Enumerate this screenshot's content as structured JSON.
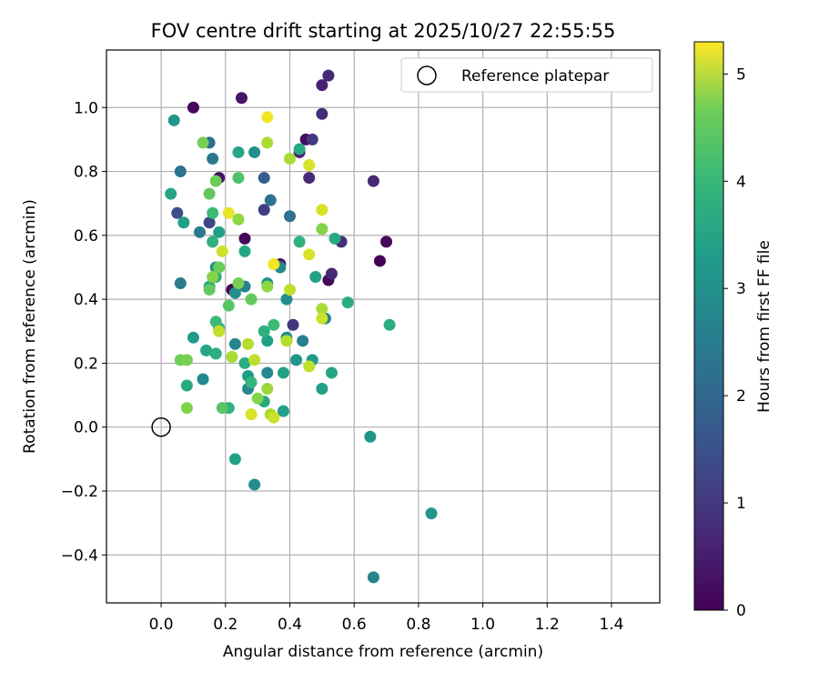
{
  "chart_data": {
    "type": "scatter",
    "title": "FOV centre drift starting at 2025/10/27 22:55:55",
    "xlabel": "Angular distance from reference (arcmin)",
    "ylabel": "Rotation from reference (arcmin)",
    "xlim": [
      -0.17,
      1.55
    ],
    "ylim": [
      -0.55,
      1.18
    ],
    "xticks": [
      0.0,
      0.2,
      0.4,
      0.6,
      0.8,
      1.0,
      1.2,
      1.4
    ],
    "xtick_labels": [
      "0.0",
      "0.2",
      "0.4",
      "0.6",
      "0.8",
      "1.0",
      "1.2",
      "1.4"
    ],
    "yticks": [
      -0.4,
      -0.2,
      0.0,
      0.2,
      0.4,
      0.6,
      0.8,
      1.0
    ],
    "ytick_labels": [
      "−0.4",
      "−0.2",
      "0.0",
      "0.2",
      "0.4",
      "0.6",
      "0.8",
      "1.0"
    ],
    "grid": true,
    "legend": {
      "placement": "top-right",
      "entries": [
        "Reference platepar"
      ]
    },
    "reference_point": {
      "x": 0.0,
      "y": 0.0
    },
    "colorbar": {
      "label": "Hours from first FF file",
      "range": [
        0,
        5.3
      ],
      "ticks": [
        0,
        1,
        2,
        3,
        4,
        5
      ],
      "tick_labels": [
        "0",
        "1",
        "2",
        "3",
        "4",
        "5"
      ],
      "colormap": "viridis"
    },
    "points": [
      {
        "x": 0.1,
        "y": 1.0,
        "c": 0.1
      },
      {
        "x": 0.25,
        "y": 1.03,
        "c": 0.3
      },
      {
        "x": 0.52,
        "y": 1.1,
        "c": 0.6
      },
      {
        "x": 0.5,
        "y": 1.07,
        "c": 0.5
      },
      {
        "x": 0.5,
        "y": 0.98,
        "c": 0.7
      },
      {
        "x": 0.45,
        "y": 0.9,
        "c": 0.2
      },
      {
        "x": 0.47,
        "y": 0.9,
        "c": 0.9
      },
      {
        "x": 0.43,
        "y": 0.86,
        "c": 0.5
      },
      {
        "x": 0.46,
        "y": 0.78,
        "c": 0.6
      },
      {
        "x": 0.66,
        "y": 0.77,
        "c": 0.6
      },
      {
        "x": 0.7,
        "y": 0.58,
        "c": 0.1
      },
      {
        "x": 0.68,
        "y": 0.52,
        "c": 0.0
      },
      {
        "x": 0.56,
        "y": 0.58,
        "c": 0.7
      },
      {
        "x": 0.52,
        "y": 0.46,
        "c": 0.1
      },
      {
        "x": 0.53,
        "y": 0.48,
        "c": 0.6
      },
      {
        "x": 0.26,
        "y": 0.59,
        "c": 0.1
      },
      {
        "x": 0.22,
        "y": 0.43,
        "c": 0.1
      },
      {
        "x": 0.18,
        "y": 0.78,
        "c": 0.2
      },
      {
        "x": 0.37,
        "y": 0.51,
        "c": 0.3
      },
      {
        "x": 0.41,
        "y": 0.32,
        "c": 0.8
      },
      {
        "x": 0.32,
        "y": 0.68,
        "c": 1.0
      },
      {
        "x": 0.15,
        "y": 0.64,
        "c": 1.1
      },
      {
        "x": 0.05,
        "y": 0.67,
        "c": 1.3
      },
      {
        "x": 0.32,
        "y": 0.78,
        "c": 1.6
      },
      {
        "x": 0.15,
        "y": 0.89,
        "c": 1.9
      },
      {
        "x": 0.16,
        "y": 0.84,
        "c": 2.1
      },
      {
        "x": 0.06,
        "y": 0.8,
        "c": 2.0
      },
      {
        "x": 0.34,
        "y": 0.71,
        "c": 2.0
      },
      {
        "x": 0.4,
        "y": 0.66,
        "c": 2.0
      },
      {
        "x": 0.12,
        "y": 0.61,
        "c": 2.2
      },
      {
        "x": 0.06,
        "y": 0.45,
        "c": 2.2
      },
      {
        "x": 0.29,
        "y": 0.86,
        "c": 2.6
      },
      {
        "x": 0.24,
        "y": 0.86,
        "c": 3.1
      },
      {
        "x": 0.04,
        "y": 0.96,
        "c": 2.8
      },
      {
        "x": 0.03,
        "y": 0.73,
        "c": 3.1
      },
      {
        "x": 0.07,
        "y": 0.64,
        "c": 3.0
      },
      {
        "x": 0.18,
        "y": 0.61,
        "c": 3.0
      },
      {
        "x": 0.16,
        "y": 0.58,
        "c": 3.4
      },
      {
        "x": 0.17,
        "y": 0.5,
        "c": 2.7
      },
      {
        "x": 0.17,
        "y": 0.47,
        "c": 3.3
      },
      {
        "x": 0.15,
        "y": 0.44,
        "c": 3.2
      },
      {
        "x": 0.23,
        "y": 0.42,
        "c": 2.6
      },
      {
        "x": 0.26,
        "y": 0.44,
        "c": 2.3
      },
      {
        "x": 0.26,
        "y": 0.55,
        "c": 3.1
      },
      {
        "x": 0.43,
        "y": 0.87,
        "c": 3.2
      },
      {
        "x": 0.43,
        "y": 0.58,
        "c": 3.4
      },
      {
        "x": 0.37,
        "y": 0.5,
        "c": 2.5
      },
      {
        "x": 0.33,
        "y": 0.45,
        "c": 2.7
      },
      {
        "x": 0.39,
        "y": 0.4,
        "c": 2.6
      },
      {
        "x": 0.48,
        "y": 0.47,
        "c": 3.0
      },
      {
        "x": 0.51,
        "y": 0.34,
        "c": 2.3
      },
      {
        "x": 0.54,
        "y": 0.59,
        "c": 3.2
      },
      {
        "x": 0.58,
        "y": 0.39,
        "c": 3.3
      },
      {
        "x": 0.71,
        "y": 0.32,
        "c": 3.3
      },
      {
        "x": 0.1,
        "y": 0.28,
        "c": 2.9
      },
      {
        "x": 0.14,
        "y": 0.24,
        "c": 3.1
      },
      {
        "x": 0.17,
        "y": 0.23,
        "c": 3.3
      },
      {
        "x": 0.18,
        "y": 0.31,
        "c": 3.3
      },
      {
        "x": 0.17,
        "y": 0.33,
        "c": 3.6
      },
      {
        "x": 0.23,
        "y": 0.26,
        "c": 2.4
      },
      {
        "x": 0.13,
        "y": 0.15,
        "c": 2.5
      },
      {
        "x": 0.08,
        "y": 0.13,
        "c": 3.2
      },
      {
        "x": 0.27,
        "y": 0.16,
        "c": 2.9
      },
      {
        "x": 0.27,
        "y": 0.12,
        "c": 2.5
      },
      {
        "x": 0.28,
        "y": 0.14,
        "c": 3.5
      },
      {
        "x": 0.26,
        "y": 0.2,
        "c": 3.3
      },
      {
        "x": 0.33,
        "y": 0.27,
        "c": 3.0
      },
      {
        "x": 0.32,
        "y": 0.3,
        "c": 3.4
      },
      {
        "x": 0.35,
        "y": 0.32,
        "c": 3.6
      },
      {
        "x": 0.39,
        "y": 0.28,
        "c": 2.6
      },
      {
        "x": 0.44,
        "y": 0.27,
        "c": 2.3
      },
      {
        "x": 0.33,
        "y": 0.17,
        "c": 2.5
      },
      {
        "x": 0.38,
        "y": 0.17,
        "c": 3.0
      },
      {
        "x": 0.42,
        "y": 0.21,
        "c": 2.8
      },
      {
        "x": 0.47,
        "y": 0.21,
        "c": 2.9
      },
      {
        "x": 0.53,
        "y": 0.17,
        "c": 3.1
      },
      {
        "x": 0.5,
        "y": 0.12,
        "c": 3.0
      },
      {
        "x": 0.32,
        "y": 0.08,
        "c": 3.2
      },
      {
        "x": 0.38,
        "y": 0.05,
        "c": 3.0
      },
      {
        "x": 0.21,
        "y": 0.06,
        "c": 3.4
      },
      {
        "x": 0.65,
        "y": -0.03,
        "c": 2.8
      },
      {
        "x": 0.23,
        "y": -0.1,
        "c": 3.0
      },
      {
        "x": 0.29,
        "y": -0.18,
        "c": 2.6
      },
      {
        "x": 0.84,
        "y": -0.27,
        "c": 2.8
      },
      {
        "x": 0.66,
        "y": -0.47,
        "c": 2.4
      },
      {
        "x": 0.13,
        "y": 0.89,
        "c": 4.2
      },
      {
        "x": 0.24,
        "y": 0.78,
        "c": 3.8
      },
      {
        "x": 0.15,
        "y": 0.73,
        "c": 4.0
      },
      {
        "x": 0.17,
        "y": 0.77,
        "c": 4.1
      },
      {
        "x": 0.16,
        "y": 0.67,
        "c": 3.6
      },
      {
        "x": 0.24,
        "y": 0.65,
        "c": 4.4
      },
      {
        "x": 0.21,
        "y": 0.67,
        "c": 5.1
      },
      {
        "x": 0.19,
        "y": 0.55,
        "c": 4.9
      },
      {
        "x": 0.18,
        "y": 0.5,
        "c": 4.1
      },
      {
        "x": 0.16,
        "y": 0.47,
        "c": 4.3
      },
      {
        "x": 0.15,
        "y": 0.43,
        "c": 4.0
      },
      {
        "x": 0.24,
        "y": 0.45,
        "c": 4.2
      },
      {
        "x": 0.21,
        "y": 0.38,
        "c": 3.9
      },
      {
        "x": 0.28,
        "y": 0.4,
        "c": 4.0
      },
      {
        "x": 0.33,
        "y": 0.44,
        "c": 4.4
      },
      {
        "x": 0.33,
        "y": 0.89,
        "c": 4.6
      },
      {
        "x": 0.33,
        "y": 0.97,
        "c": 5.2
      },
      {
        "x": 0.4,
        "y": 0.84,
        "c": 4.6
      },
      {
        "x": 0.46,
        "y": 0.82,
        "c": 5.0
      },
      {
        "x": 0.5,
        "y": 0.62,
        "c": 4.3
      },
      {
        "x": 0.5,
        "y": 0.68,
        "c": 5.0
      },
      {
        "x": 0.46,
        "y": 0.54,
        "c": 5.0
      },
      {
        "x": 0.35,
        "y": 0.51,
        "c": 5.2
      },
      {
        "x": 0.4,
        "y": 0.43,
        "c": 4.8
      },
      {
        "x": 0.5,
        "y": 0.37,
        "c": 4.6
      },
      {
        "x": 0.5,
        "y": 0.34,
        "c": 4.9
      },
      {
        "x": 0.39,
        "y": 0.27,
        "c": 4.7
      },
      {
        "x": 0.46,
        "y": 0.19,
        "c": 4.8
      },
      {
        "x": 0.06,
        "y": 0.21,
        "c": 4.1
      },
      {
        "x": 0.08,
        "y": 0.21,
        "c": 4.2
      },
      {
        "x": 0.18,
        "y": 0.3,
        "c": 4.8
      },
      {
        "x": 0.22,
        "y": 0.22,
        "c": 4.6
      },
      {
        "x": 0.27,
        "y": 0.26,
        "c": 4.7
      },
      {
        "x": 0.29,
        "y": 0.21,
        "c": 4.8
      },
      {
        "x": 0.33,
        "y": 0.12,
        "c": 4.5
      },
      {
        "x": 0.3,
        "y": 0.09,
        "c": 4.3
      },
      {
        "x": 0.34,
        "y": 0.04,
        "c": 4.6
      },
      {
        "x": 0.35,
        "y": 0.03,
        "c": 4.9
      },
      {
        "x": 0.28,
        "y": 0.04,
        "c": 5.0
      },
      {
        "x": 0.08,
        "y": 0.06,
        "c": 4.3
      },
      {
        "x": 0.19,
        "y": 0.06,
        "c": 3.9
      }
    ]
  }
}
